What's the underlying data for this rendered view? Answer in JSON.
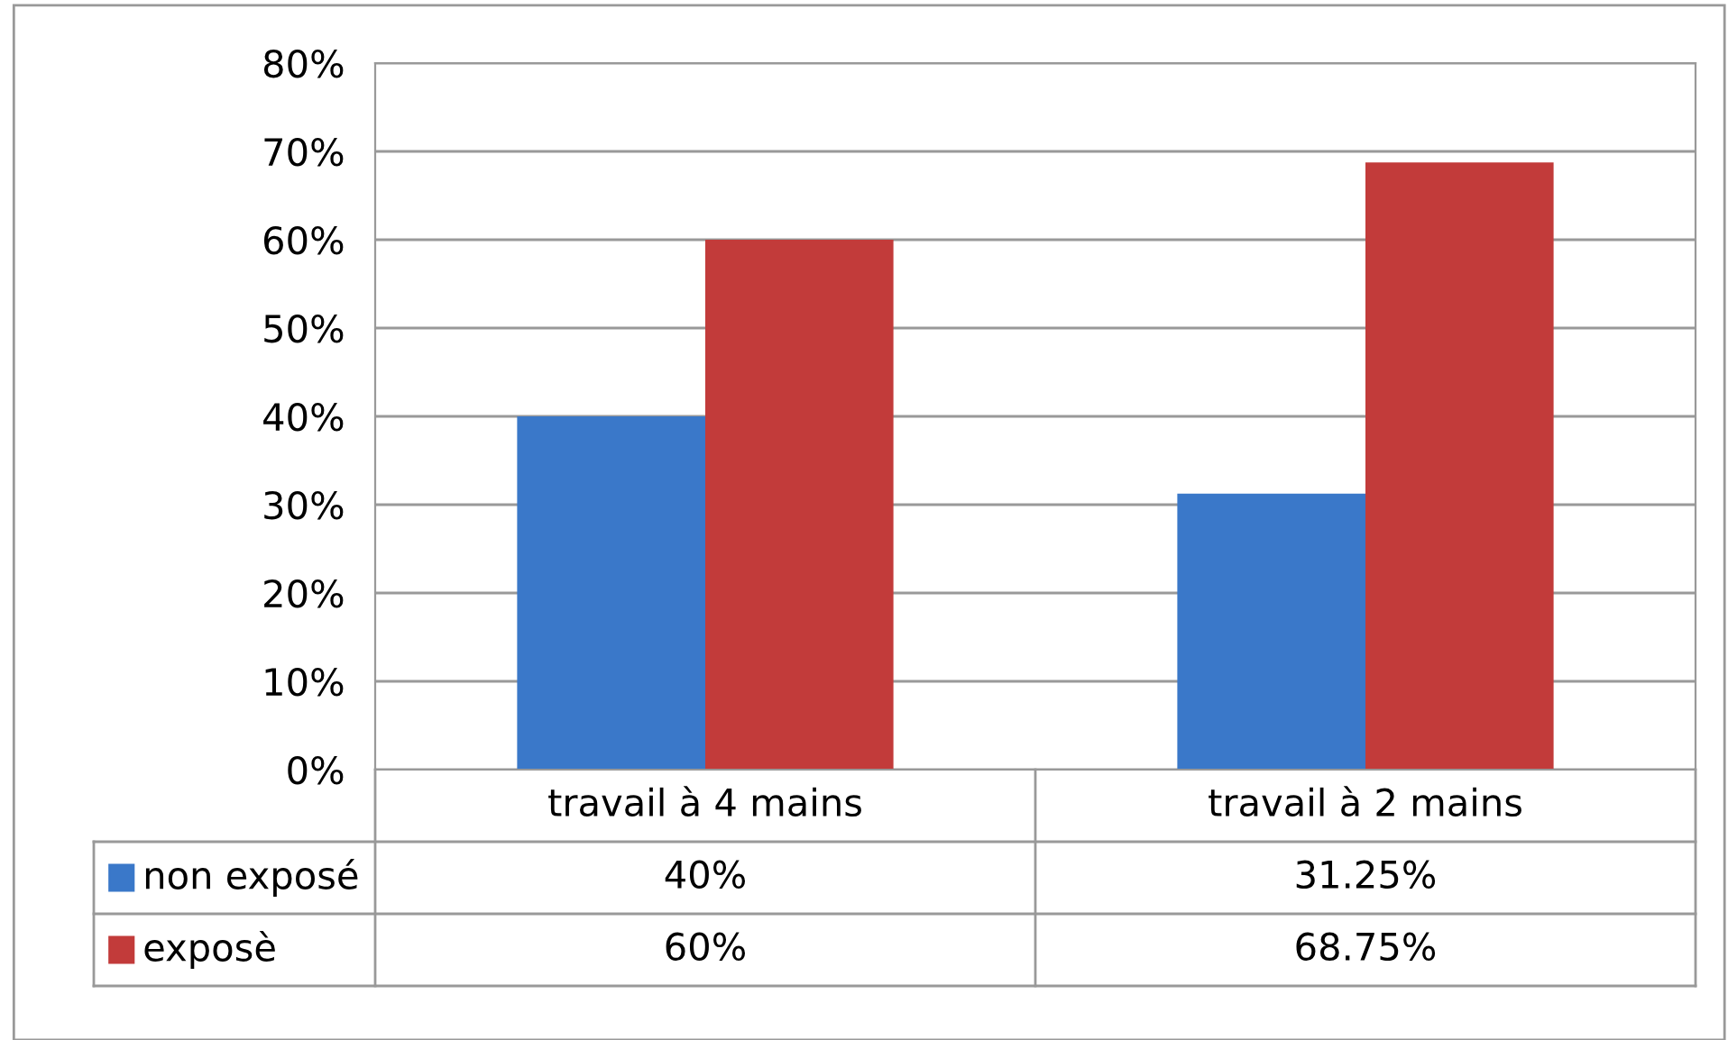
{
  "chart_data": {
    "type": "bar",
    "categories": [
      "travail à 4 mains",
      "travail à 2 mains"
    ],
    "series": [
      {
        "name": "non exposé",
        "color": "#3a78c9",
        "values": [
          40,
          31.25
        ],
        "value_labels": [
          "40%",
          "31.25%"
        ]
      },
      {
        "name": "exposè",
        "color": "#c23b3a",
        "values": [
          60,
          68.75
        ],
        "value_labels": [
          "60%",
          "68.75%"
        ]
      }
    ],
    "ylim": [
      0,
      80
    ],
    "yticks": [
      {
        "value": 0,
        "label": "0%"
      },
      {
        "value": 10,
        "label": "10%"
      },
      {
        "value": 20,
        "label": "20%"
      },
      {
        "value": 30,
        "label": "30%"
      },
      {
        "value": 40,
        "label": "40%"
      },
      {
        "value": 50,
        "label": "50%"
      },
      {
        "value": 60,
        "label": "60%"
      },
      {
        "value": 70,
        "label": "70%"
      },
      {
        "value": 80,
        "label": "80%"
      }
    ],
    "grid": "y",
    "legend": "bottom left"
  }
}
